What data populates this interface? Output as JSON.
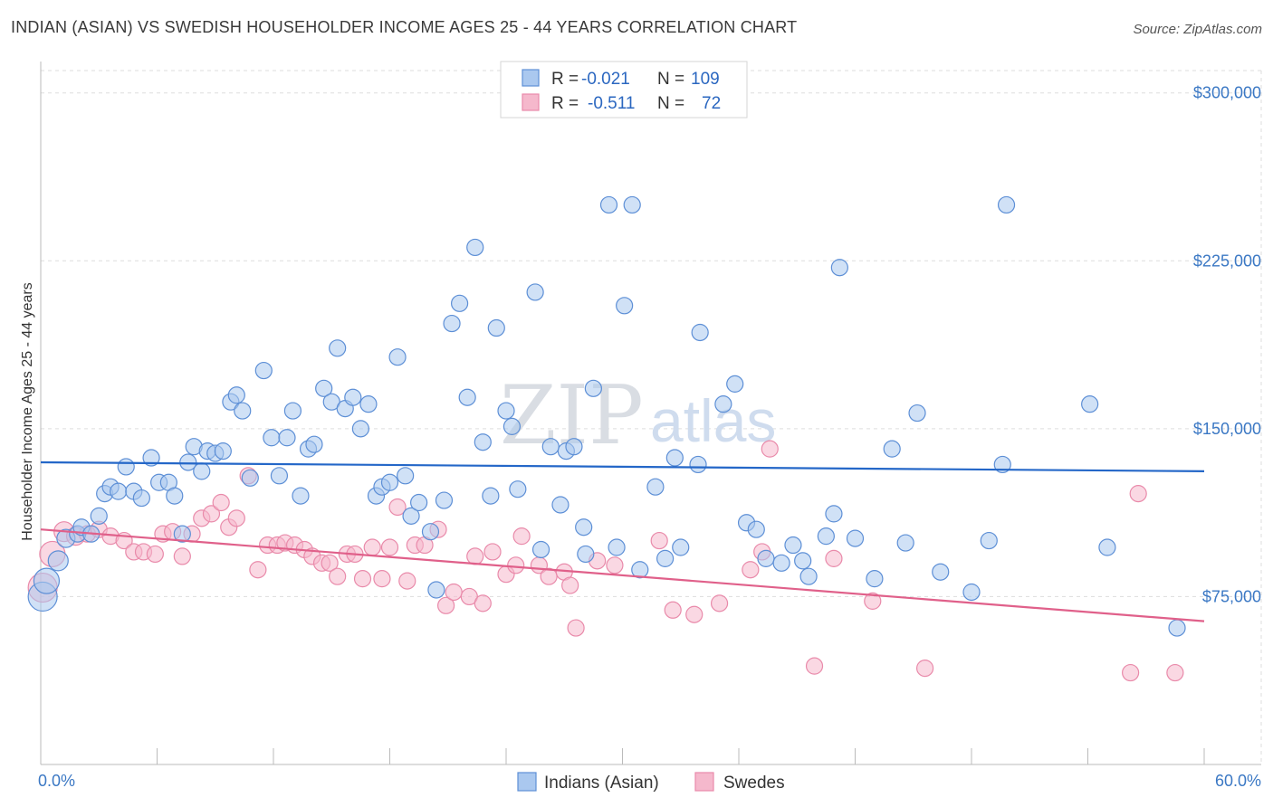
{
  "header": {
    "title": "INDIAN (ASIAN) VS SWEDISH HOUSEHOLDER INCOME AGES 25 - 44 YEARS CORRELATION CHART",
    "source": "Source: ZipAtlas.com"
  },
  "watermark": {
    "zip": "ZIP",
    "atlas": "atlas"
  },
  "colors": {
    "blue_fill": "#aac8ef",
    "blue_stroke": "#5d8fd6",
    "blue_line": "#2467c8",
    "pink_fill": "#f5b8cc",
    "pink_stroke": "#e98aaa",
    "pink_line": "#e0608a",
    "grid": "#dddddd",
    "tick_text": "#3b78c4"
  },
  "legend": {
    "rows": [
      {
        "r_label": "R =",
        "r_value": "-0.021",
        "n_label": "N =",
        "n_value": "109"
      },
      {
        "r_label": "R =",
        "r_value": "-0.511",
        "n_label": "N =",
        "n_value": "72"
      }
    ]
  },
  "bottom_legend": {
    "items": [
      "Indians (Asian)",
      "Swedes"
    ]
  },
  "chart_data": {
    "type": "scatter",
    "title": "INDIAN (ASIAN) VS SWEDISH HOUSEHOLDER INCOME AGES 25 - 44 YEARS CORRELATION CHART",
    "xlabel": "",
    "ylabel": "Householder Income Ages 25 - 44 years",
    "xlim": [
      0,
      60
    ],
    "ylim": [
      0,
      310000
    ],
    "x_tick_labels": [
      "0.0%",
      "60.0%"
    ],
    "y_ticks": [
      75000,
      150000,
      225000,
      300000
    ],
    "y_tick_labels": [
      "$75,000",
      "$150,000",
      "$225,000",
      "$300,000"
    ],
    "grid": true,
    "legend_position": "top-center",
    "series": [
      {
        "name": "Indians (Asian)",
        "r": -0.021,
        "n": 109,
        "trend": [
          [
            0,
            135000
          ],
          [
            60,
            131000
          ]
        ],
        "points": [
          [
            0.1,
            75000,
            16
          ],
          [
            0.3,
            82000,
            14
          ],
          [
            0.9,
            91000,
            11
          ],
          [
            1.3,
            101000,
            10
          ],
          [
            1.9,
            103000,
            9
          ],
          [
            2.1,
            106000,
            9
          ],
          [
            2.6,
            103000,
            9
          ],
          [
            3.0,
            111000,
            9
          ],
          [
            3.3,
            121000,
            9
          ],
          [
            3.6,
            124000,
            9
          ],
          [
            4.0,
            122000,
            9
          ],
          [
            4.4,
            133000,
            9
          ],
          [
            4.8,
            122000,
            9
          ],
          [
            5.2,
            119000,
            9
          ],
          [
            5.7,
            137000,
            9
          ],
          [
            6.1,
            126000,
            9
          ],
          [
            6.6,
            126000,
            9
          ],
          [
            6.9,
            120000,
            9
          ],
          [
            7.3,
            103000,
            9
          ],
          [
            7.6,
            135000,
            9
          ],
          [
            7.9,
            142000,
            9
          ],
          [
            8.3,
            131000,
            9
          ],
          [
            8.6,
            140000,
            9
          ],
          [
            9.0,
            139000,
            9
          ],
          [
            9.4,
            140000,
            9
          ],
          [
            9.8,
            162000,
            9
          ],
          [
            10.1,
            165000,
            9
          ],
          [
            10.4,
            158000,
            9
          ],
          [
            10.8,
            128000,
            9
          ],
          [
            11.5,
            176000,
            9
          ],
          [
            11.9,
            146000,
            9
          ],
          [
            12.3,
            129000,
            9
          ],
          [
            12.7,
            146000,
            9
          ],
          [
            13.0,
            158000,
            9
          ],
          [
            13.4,
            120000,
            9
          ],
          [
            13.8,
            141000,
            9
          ],
          [
            14.1,
            143000,
            9
          ],
          [
            14.6,
            168000,
            9
          ],
          [
            15.0,
            162000,
            9
          ],
          [
            15.3,
            186000,
            9
          ],
          [
            15.7,
            159000,
            9
          ],
          [
            16.1,
            164000,
            9
          ],
          [
            16.5,
            150000,
            9
          ],
          [
            16.9,
            161000,
            9
          ],
          [
            17.3,
            120000,
            9
          ],
          [
            17.6,
            124000,
            9
          ],
          [
            18.0,
            126000,
            9
          ],
          [
            18.4,
            182000,
            9
          ],
          [
            18.8,
            129000,
            9
          ],
          [
            19.1,
            111000,
            9
          ],
          [
            19.5,
            117000,
            9
          ],
          [
            20.1,
            104000,
            9
          ],
          [
            20.4,
            78000,
            9
          ],
          [
            20.8,
            118000,
            9
          ],
          [
            21.2,
            197000,
            9
          ],
          [
            21.6,
            206000,
            9
          ],
          [
            22.0,
            164000,
            9
          ],
          [
            22.4,
            231000,
            9
          ],
          [
            22.8,
            144000,
            9
          ],
          [
            23.2,
            120000,
            9
          ],
          [
            23.5,
            195000,
            9
          ],
          [
            24.0,
            158000,
            9
          ],
          [
            24.3,
            151000,
            9
          ],
          [
            24.6,
            123000,
            9
          ],
          [
            25.5,
            211000,
            9
          ],
          [
            25.8,
            96000,
            9
          ],
          [
            26.3,
            142000,
            9
          ],
          [
            26.8,
            116000,
            9
          ],
          [
            27.1,
            140000,
            9
          ],
          [
            27.5,
            142000,
            9
          ],
          [
            28.0,
            106000,
            9
          ],
          [
            28.1,
            94000,
            9
          ],
          [
            28.5,
            168000,
            9
          ],
          [
            29.3,
            250000,
            9
          ],
          [
            29.7,
            97000,
            9
          ],
          [
            30.1,
            205000,
            9
          ],
          [
            30.5,
            250000,
            9
          ],
          [
            30.9,
            87000,
            9
          ],
          [
            31.7,
            124000,
            9
          ],
          [
            32.2,
            92000,
            9
          ],
          [
            32.7,
            137000,
            9
          ],
          [
            33.0,
            97000,
            9
          ],
          [
            33.9,
            134000,
            9
          ],
          [
            34.0,
            193000,
            9
          ],
          [
            35.2,
            161000,
            9
          ],
          [
            35.8,
            170000,
            9
          ],
          [
            36.4,
            108000,
            9
          ],
          [
            36.9,
            105000,
            9
          ],
          [
            37.4,
            92000,
            9
          ],
          [
            38.2,
            90000,
            9
          ],
          [
            38.8,
            98000,
            9
          ],
          [
            39.3,
            91000,
            9
          ],
          [
            39.6,
            84000,
            9
          ],
          [
            40.5,
            102000,
            9
          ],
          [
            40.9,
            112000,
            9
          ],
          [
            41.2,
            222000,
            9
          ],
          [
            42.0,
            101000,
            9
          ],
          [
            43.0,
            83000,
            9
          ],
          [
            43.9,
            141000,
            9
          ],
          [
            44.6,
            99000,
            9
          ],
          [
            45.2,
            157000,
            9
          ],
          [
            46.4,
            86000,
            9
          ],
          [
            48.0,
            77000,
            9
          ],
          [
            48.9,
            100000,
            9
          ],
          [
            49.6,
            134000,
            9
          ],
          [
            49.8,
            250000,
            9
          ],
          [
            54.1,
            161000,
            9
          ],
          [
            55.0,
            97000,
            9
          ],
          [
            58.6,
            61000,
            9
          ]
        ]
      },
      {
        "name": "Swedes",
        "r": -0.511,
        "n": 72,
        "trend": [
          [
            0,
            105000
          ],
          [
            60,
            64000
          ]
        ],
        "points": [
          [
            0.1,
            79000,
            16
          ],
          [
            0.6,
            94000,
            14
          ],
          [
            1.2,
            104000,
            11
          ],
          [
            1.8,
            102000,
            10
          ],
          [
            2.4,
            103000,
            9
          ],
          [
            3.0,
            105000,
            9
          ],
          [
            3.6,
            102000,
            9
          ],
          [
            4.3,
            100000,
            9
          ],
          [
            4.8,
            95000,
            9
          ],
          [
            5.3,
            95000,
            9
          ],
          [
            5.9,
            94000,
            9
          ],
          [
            6.3,
            103000,
            9
          ],
          [
            6.8,
            104000,
            9
          ],
          [
            7.3,
            93000,
            9
          ],
          [
            7.8,
            103000,
            9
          ],
          [
            8.3,
            110000,
            9
          ],
          [
            8.8,
            112000,
            9
          ],
          [
            9.3,
            117000,
            9
          ],
          [
            9.7,
            106000,
            9
          ],
          [
            10.1,
            110000,
            9
          ],
          [
            10.7,
            129000,
            9
          ],
          [
            11.2,
            87000,
            9
          ],
          [
            11.7,
            98000,
            9
          ],
          [
            12.2,
            98000,
            9
          ],
          [
            12.6,
            99000,
            9
          ],
          [
            13.1,
            98000,
            9
          ],
          [
            13.6,
            96000,
            9
          ],
          [
            14.0,
            93000,
            9
          ],
          [
            14.5,
            90000,
            9
          ],
          [
            14.9,
            90000,
            9
          ],
          [
            15.3,
            84000,
            9
          ],
          [
            15.8,
            94000,
            9
          ],
          [
            16.2,
            94000,
            9
          ],
          [
            16.6,
            83000,
            9
          ],
          [
            17.1,
            97000,
            9
          ],
          [
            17.6,
            83000,
            9
          ],
          [
            18.0,
            97000,
            9
          ],
          [
            18.4,
            115000,
            9
          ],
          [
            18.9,
            82000,
            9
          ],
          [
            19.3,
            98000,
            9
          ],
          [
            19.8,
            98000,
            9
          ],
          [
            20.5,
            105000,
            9
          ],
          [
            20.9,
            71000,
            9
          ],
          [
            21.3,
            77000,
            9
          ],
          [
            22.1,
            75000,
            9
          ],
          [
            22.4,
            93000,
            9
          ],
          [
            22.8,
            72000,
            9
          ],
          [
            23.3,
            95000,
            9
          ],
          [
            24.0,
            85000,
            9
          ],
          [
            24.5,
            89000,
            9
          ],
          [
            24.8,
            102000,
            9
          ],
          [
            25.7,
            89000,
            9
          ],
          [
            26.2,
            84000,
            9
          ],
          [
            27.0,
            86000,
            9
          ],
          [
            27.3,
            80000,
            9
          ],
          [
            27.6,
            61000,
            9
          ],
          [
            28.7,
            91000,
            9
          ],
          [
            29.6,
            89000,
            9
          ],
          [
            31.9,
            100000,
            9
          ],
          [
            32.6,
            69000,
            9
          ],
          [
            33.7,
            67000,
            9
          ],
          [
            35.0,
            72000,
            9
          ],
          [
            36.6,
            87000,
            9
          ],
          [
            37.2,
            95000,
            9
          ],
          [
            37.6,
            141000,
            9
          ],
          [
            39.9,
            44000,
            9
          ],
          [
            40.9,
            92000,
            9
          ],
          [
            42.9,
            73000,
            9
          ],
          [
            45.6,
            43000,
            9
          ],
          [
            56.2,
            41000,
            9
          ],
          [
            56.6,
            121000,
            9
          ],
          [
            58.5,
            41000,
            9
          ]
        ]
      }
    ]
  }
}
